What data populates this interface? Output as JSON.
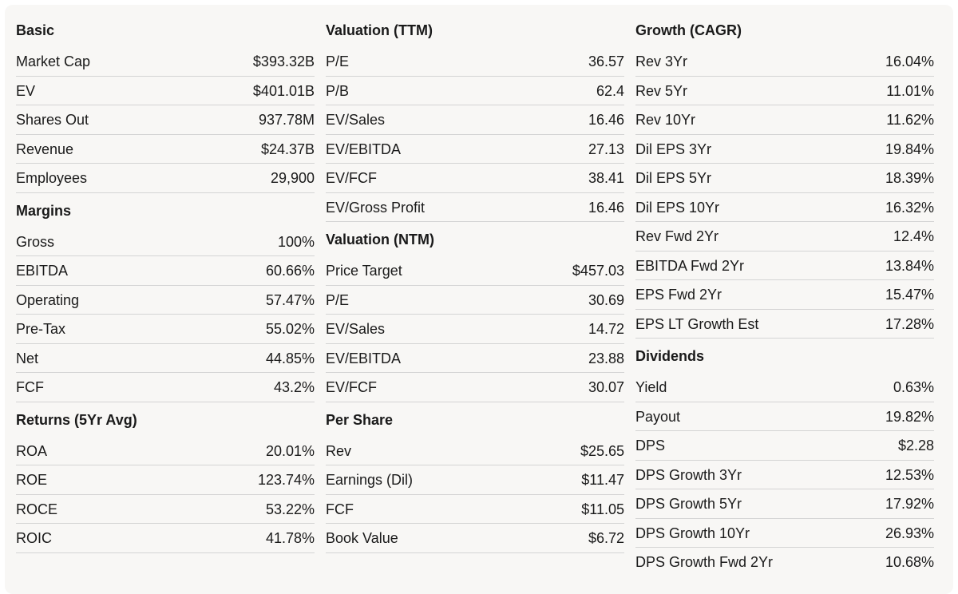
{
  "columns": [
    {
      "sections": [
        {
          "title": "Basic",
          "rows": [
            {
              "label": "Market Cap",
              "value": "$393.32B"
            },
            {
              "label": "EV",
              "value": "$401.01B"
            },
            {
              "label": "Shares Out",
              "value": "937.78M"
            },
            {
              "label": "Revenue",
              "value": "$24.37B"
            },
            {
              "label": "Employees",
              "value": "29,900"
            }
          ]
        },
        {
          "title": "Margins",
          "rows": [
            {
              "label": "Gross",
              "value": "100%"
            },
            {
              "label": "EBITDA",
              "value": "60.66%"
            },
            {
              "label": "Operating",
              "value": "57.47%"
            },
            {
              "label": "Pre-Tax",
              "value": "55.02%"
            },
            {
              "label": "Net",
              "value": "44.85%"
            },
            {
              "label": "FCF",
              "value": "43.2%"
            }
          ]
        },
        {
          "title": "Returns (5Yr Avg)",
          "rows": [
            {
              "label": "ROA",
              "value": "20.01%"
            },
            {
              "label": "ROE",
              "value": "123.74%"
            },
            {
              "label": "ROCE",
              "value": "53.22%"
            },
            {
              "label": "ROIC",
              "value": "41.78%"
            }
          ]
        }
      ]
    },
    {
      "sections": [
        {
          "title": "Valuation (TTM)",
          "rows": [
            {
              "label": "P/E",
              "value": "36.57"
            },
            {
              "label": "P/B",
              "value": "62.4"
            },
            {
              "label": "EV/Sales",
              "value": "16.46"
            },
            {
              "label": "EV/EBITDA",
              "value": "27.13"
            },
            {
              "label": "EV/FCF",
              "value": "38.41"
            },
            {
              "label": "EV/Gross Profit",
              "value": "16.46"
            }
          ]
        },
        {
          "title": "Valuation (NTM)",
          "rows": [
            {
              "label": "Price Target",
              "value": "$457.03"
            },
            {
              "label": "P/E",
              "value": "30.69"
            },
            {
              "label": "EV/Sales",
              "value": "14.72"
            },
            {
              "label": "EV/EBITDA",
              "value": "23.88"
            },
            {
              "label": "EV/FCF",
              "value": "30.07"
            }
          ]
        },
        {
          "title": "Per Share",
          "rows": [
            {
              "label": "Rev",
              "value": "$25.65"
            },
            {
              "label": "Earnings (Dil)",
              "value": "$11.47"
            },
            {
              "label": "FCF",
              "value": "$11.05"
            },
            {
              "label": "Book Value",
              "value": "$6.72"
            }
          ]
        }
      ]
    },
    {
      "sections": [
        {
          "title": "Growth (CAGR)",
          "rows": [
            {
              "label": "Rev 3Yr",
              "value": "16.04%"
            },
            {
              "label": "Rev 5Yr",
              "value": "11.01%"
            },
            {
              "label": "Rev 10Yr",
              "value": "11.62%"
            },
            {
              "label": "Dil EPS 3Yr",
              "value": "19.84%"
            },
            {
              "label": "Dil EPS 5Yr",
              "value": "18.39%"
            },
            {
              "label": "Dil EPS 10Yr",
              "value": "16.32%"
            },
            {
              "label": "Rev Fwd 2Yr",
              "value": "12.4%"
            },
            {
              "label": "EBITDA Fwd 2Yr",
              "value": "13.84%"
            },
            {
              "label": "EPS Fwd 2Yr",
              "value": "15.47%"
            },
            {
              "label": "EPS LT Growth Est",
              "value": "17.28%"
            }
          ]
        },
        {
          "title": "Dividends",
          "rows": [
            {
              "label": "Yield",
              "value": "0.63%"
            },
            {
              "label": "Payout",
              "value": "19.82%"
            },
            {
              "label": "DPS",
              "value": "$2.28"
            },
            {
              "label": "DPS Growth 3Yr",
              "value": "12.53%"
            },
            {
              "label": "DPS Growth 5Yr",
              "value": "17.92%"
            },
            {
              "label": "DPS Growth 10Yr",
              "value": "26.93%"
            },
            {
              "label": "DPS Growth Fwd 2Yr",
              "value": "10.68%"
            }
          ]
        }
      ]
    }
  ]
}
